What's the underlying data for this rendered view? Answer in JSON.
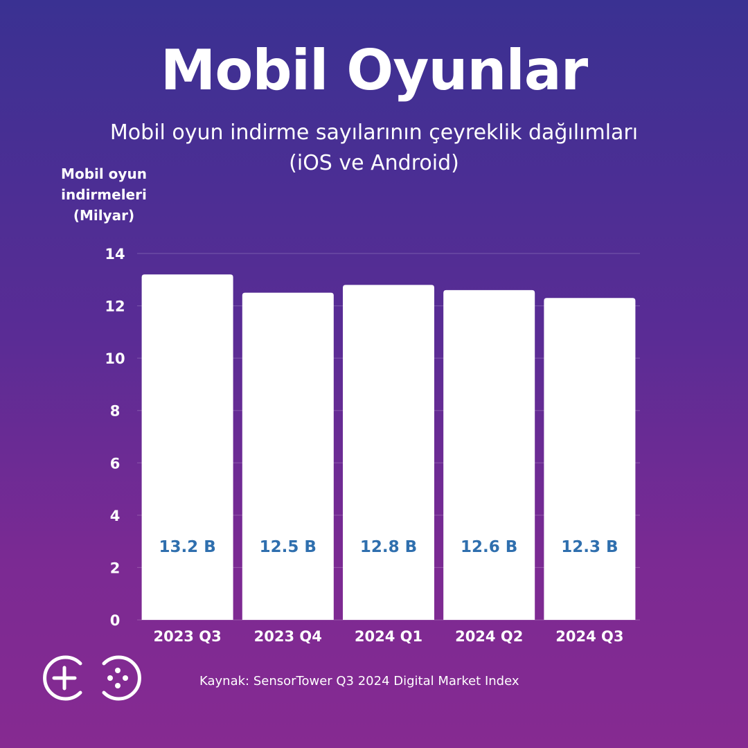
{
  "title": "Mobil Oyunlar",
  "subtitle_line1": "Mobil oyun indirme sayılarının çeyreklik dağılımları",
  "subtitle_line2": "(iOS ve Android)",
  "source": "Kaynak: SensorTower Q3 2024 Digital Market Index",
  "logo": {
    "icon": "gamepad-go-logo"
  },
  "colors": {
    "bar": "#ffffff",
    "value_label": "#2f6fae",
    "background_top": "#3a3192",
    "background_bottom": "#862a91"
  },
  "chart_data": {
    "type": "bar",
    "ylabel_lines": [
      "Mobil oyun",
      "indirmeleri",
      "(Milyar)"
    ],
    "categories": [
      "2023 Q3",
      "2023 Q4",
      "2024 Q1",
      "2024 Q2",
      "2024 Q3"
    ],
    "values": [
      13.2,
      12.5,
      12.8,
      12.6,
      12.3
    ],
    "value_labels": [
      "13.2 B",
      "12.5 B",
      "12.8 B",
      "12.6 B",
      "12.3 B"
    ],
    "ylim": [
      0,
      14
    ],
    "yticks": [
      0,
      2,
      4,
      6,
      8,
      10,
      12,
      14
    ],
    "grid": true,
    "legend": "none"
  }
}
